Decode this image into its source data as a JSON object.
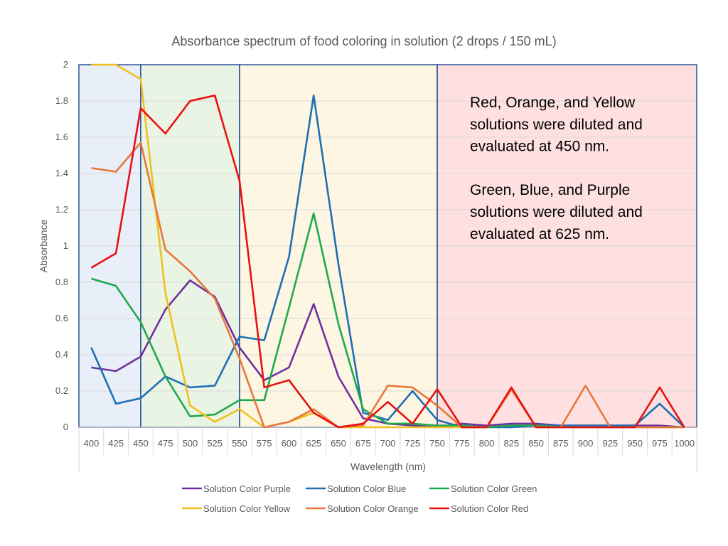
{
  "chart_data": {
    "type": "line",
    "title": "Absorbance spectrum of food coloring in solution (2 drops / 150 mL)",
    "xlabel": "Wavelength (nm)",
    "ylabel": "Absorbance",
    "ylim": [
      0,
      2
    ],
    "yticks": [
      "0",
      "0.2",
      "0.4",
      "0.6",
      "0.8",
      "1",
      "1.2",
      "1.4",
      "1.6",
      "1.8",
      "2"
    ],
    "grid": true,
    "legend_position": "bottom",
    "categories": [
      "400",
      "425",
      "450",
      "475",
      "500",
      "525",
      "550",
      "575",
      "600",
      "625",
      "650",
      "675",
      "700",
      "725",
      "750",
      "775",
      "800",
      "825",
      "850",
      "875",
      "900",
      "925",
      "950",
      "975",
      "1000"
    ],
    "bands": [
      {
        "from": "400",
        "to": "450",
        "color": "#E8EFF9"
      },
      {
        "from": "450",
        "to": "550",
        "color": "#EAF4E4"
      },
      {
        "from": "550",
        "to": "750",
        "color": "#FDF6E3"
      },
      {
        "from": "750",
        "to": "1000",
        "color": "#FFE0E0"
      }
    ],
    "series": [
      {
        "name": "Solution Color Purple",
        "color": "#7030A0",
        "values": [
          0.33,
          0.31,
          0.39,
          0.65,
          0.81,
          0.72,
          0.44,
          0.26,
          0.33,
          0.68,
          0.28,
          0.05,
          0.02,
          0.01,
          0.0,
          0.02,
          0.01,
          0.02,
          0.02,
          0.01,
          0.01,
          0.01,
          0.01,
          0.01,
          0.0
        ]
      },
      {
        "name": "Solution Color Blue",
        "color": "#1F6FB4",
        "values": [
          0.44,
          0.13,
          0.16,
          0.28,
          0.22,
          0.23,
          0.5,
          0.48,
          0.94,
          1.83,
          0.9,
          0.08,
          0.04,
          0.2,
          0.04,
          0.0,
          0.0,
          0.0,
          0.01,
          0.01,
          0.01,
          0.01,
          0.01,
          0.13,
          0.0
        ]
      },
      {
        "name": "Solution Color Green",
        "color": "#1EAA4B",
        "values": [
          0.82,
          0.78,
          0.58,
          0.28,
          0.06,
          0.07,
          0.15,
          0.15,
          0.66,
          1.18,
          0.57,
          0.1,
          0.02,
          0.02,
          0.01,
          0.01,
          0.0,
          0.01,
          0.01,
          0.0,
          0.0,
          0.0,
          0.0,
          0.0,
          0.0
        ]
      },
      {
        "name": "Solution Color Yellow",
        "color": "#F0C020",
        "values": [
          2.0,
          2.0,
          1.92,
          0.74,
          0.12,
          0.03,
          0.1,
          0.0,
          0.03,
          0.08,
          0.0,
          0.0,
          0.0,
          0.0,
          0.0,
          0.0,
          0.0,
          0.21,
          0.0,
          0.0,
          0.0,
          0.0,
          0.0,
          0.0,
          0.0
        ]
      },
      {
        "name": "Solution Color Orange",
        "color": "#E8773A",
        "values": [
          1.43,
          1.41,
          1.57,
          0.98,
          0.86,
          0.71,
          0.38,
          0.0,
          0.03,
          0.1,
          0.0,
          0.01,
          0.23,
          0.22,
          0.12,
          0.0,
          0.0,
          0.21,
          0.0,
          0.0,
          0.23,
          0.0,
          0.0,
          0.0,
          0.0
        ]
      },
      {
        "name": "Solution Color Red",
        "color": "#E81010",
        "values": [
          0.88,
          0.96,
          1.76,
          1.62,
          1.8,
          1.83,
          1.36,
          0.22,
          0.26,
          0.08,
          0.0,
          0.02,
          0.14,
          0.02,
          0.21,
          0.0,
          0.0,
          0.22,
          0.0,
          0.0,
          0.0,
          0.0,
          0.0,
          0.22,
          0.0
        ]
      }
    ]
  },
  "annotation": {
    "lines": [
      "Red, Orange, and Yellow",
      "solutions were diluted and",
      "evaluated at 450 nm.",
      "",
      "Green, Blue, and Purple",
      "solutions were diluted and",
      "evaluated at 625 nm."
    ]
  }
}
